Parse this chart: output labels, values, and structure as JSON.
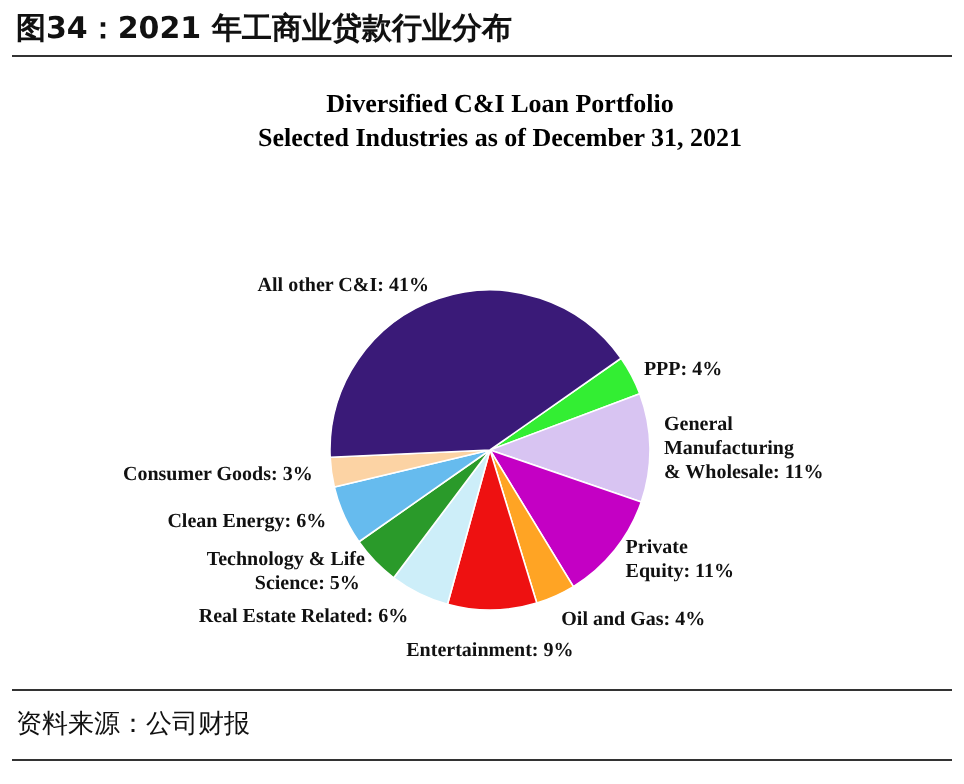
{
  "chart_data": {
    "type": "pie",
    "title": "图34：2021 年工商业贷款行业分布",
    "subtitle": "Diversified C&I Loan Portfolio\nSelected Industries as of December 31, 2021",
    "categories": [
      "PPP",
      "General Manufacturing & Wholesale",
      "Private Equity",
      "Oil and Gas",
      "Entertainment",
      "Real Estate Related",
      "Technology & Life Science",
      "Clean Energy",
      "Consumer Goods",
      "All other C&I"
    ],
    "value_labels": [
      ": 4%",
      ": 11%",
      ": 11%",
      ": 4%",
      ": 9%",
      ": 6%",
      ": 5%",
      ": 6%",
      ": 3%",
      ": 41%"
    ],
    "values": [
      4,
      11,
      11,
      4,
      9,
      6,
      5,
      6,
      3,
      41
    ],
    "colors": [
      "#33ee33",
      "#d8c4f2",
      "#c400c4",
      "#ffa424",
      "#ee1111",
      "#cdeef9",
      "#2a9a2a",
      "#66bbee",
      "#fcd3a4",
      "#3a1a78"
    ],
    "annotations": [
      "资料来源：公司财报"
    ],
    "legend": false
  }
}
